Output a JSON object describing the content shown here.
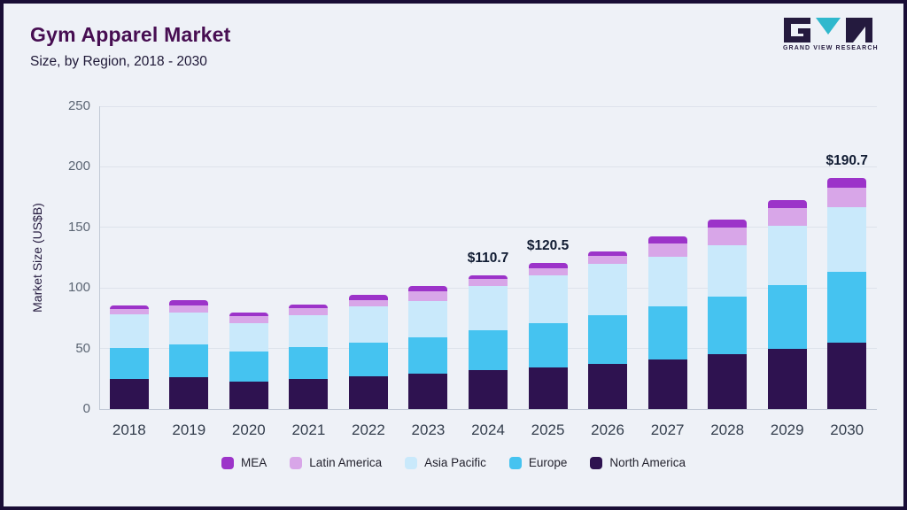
{
  "header": {
    "title": "Gym Apparel Market",
    "subtitle": "Size, by Region, 2018 - 2030"
  },
  "logo": {
    "text": "GRAND VIEW RESEARCH",
    "accent_color": "#2fb8cd",
    "dark_color": "#241a3e"
  },
  "chart_data": {
    "type": "bar",
    "variant": "stacked",
    "title": "Gym Apparel Market Size, by Region, 2018 - 2030",
    "xlabel": "",
    "ylabel": "Market Size (US$B)",
    "ylim": [
      0,
      250
    ],
    "yticks": [
      0,
      50,
      100,
      150,
      200,
      250
    ],
    "grid": true,
    "categories": [
      "2018",
      "2019",
      "2020",
      "2021",
      "2022",
      "2023",
      "2024",
      "2025",
      "2026",
      "2027",
      "2028",
      "2029",
      "2030"
    ],
    "series": [
      {
        "name": "North America",
        "color": "#2e1250",
        "values": [
          24.5,
          26,
          23,
          25,
          27,
          29.5,
          32,
          34.5,
          37.5,
          41,
          45.5,
          50,
          55
        ]
      },
      {
        "name": "Europe",
        "color": "#45c3f0",
        "values": [
          26,
          27.5,
          24.5,
          26,
          28,
          30,
          33,
          36.5,
          40,
          44,
          47.5,
          52.5,
          58
        ]
      },
      {
        "name": "Asia Pacific",
        "color": "#c9e9fb",
        "values": [
          27.5,
          26.5,
          23.5,
          26.5,
          29.5,
          30,
          36.5,
          39.5,
          42.5,
          41,
          42,
          48.5,
          53.5
        ]
      },
      {
        "name": "Latin America",
        "color": "#d8a6e8",
        "values": [
          4.5,
          5.5,
          5.5,
          5.5,
          5.5,
          8,
          5.7,
          6,
          6.5,
          11,
          15,
          15,
          16
        ]
      },
      {
        "name": "MEA",
        "color": "#9c33c9",
        "values": [
          3,
          4.5,
          3.5,
          3.5,
          4,
          4,
          3.5,
          4,
          4,
          5.5,
          6.5,
          6.5,
          8.2
        ]
      }
    ],
    "annotations": [
      {
        "category": "2024",
        "label": "$110.7"
      },
      {
        "category": "2025",
        "label": "$120.5"
      },
      {
        "category": "2030",
        "label": "$190.7"
      }
    ],
    "legend": [
      "MEA",
      "Latin America",
      "Asia Pacific",
      "Europe",
      "North America"
    ],
    "legend_position": "bottom"
  }
}
